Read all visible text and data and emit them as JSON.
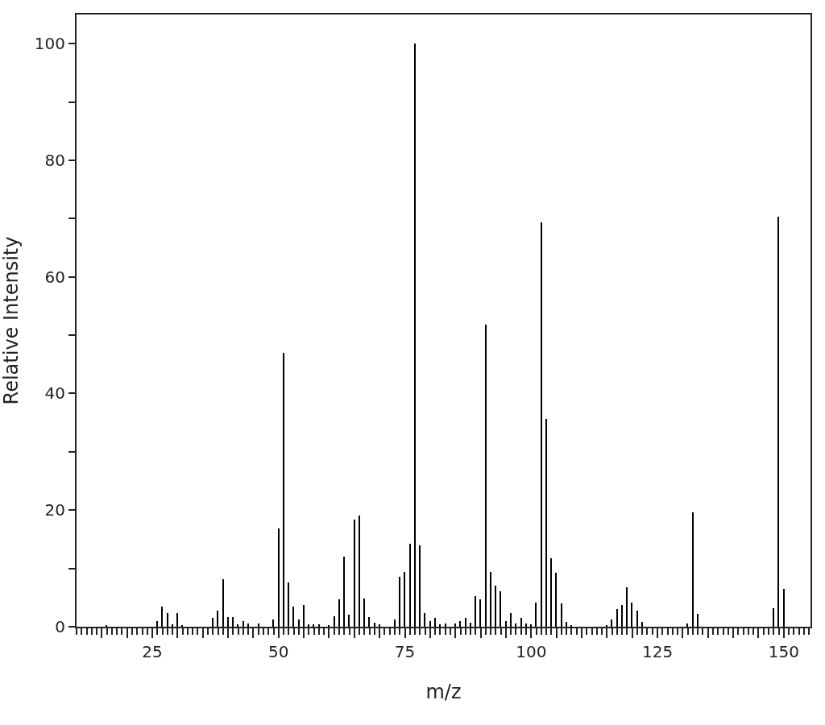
{
  "chart_data": {
    "type": "bar",
    "xlabel": "m/z",
    "ylabel": "Relative Intensity",
    "color": "#000000",
    "x": [
      16,
      26,
      27,
      28,
      29,
      30,
      31,
      37,
      38,
      39,
      40,
      41,
      42,
      43,
      44,
      46,
      49,
      50,
      51,
      52,
      53,
      54,
      55,
      56,
      57,
      58,
      60,
      61,
      62,
      63,
      64,
      65,
      66,
      67,
      68,
      69,
      70,
      73,
      74,
      75,
      76,
      77,
      78,
      79,
      80,
      81,
      82,
      83,
      85,
      86,
      87,
      88,
      89,
      90,
      91,
      92,
      93,
      94,
      95,
      96,
      97,
      98,
      99,
      100,
      101,
      102,
      103,
      104,
      105,
      106,
      107,
      108,
      115,
      116,
      117,
      118,
      119,
      120,
      121,
      122,
      131,
      132,
      133,
      148,
      149,
      150
    ],
    "values": [
      0.3,
      0.9,
      3.5,
      2.4,
      0.4,
      2.4,
      0.3,
      1.5,
      2.7,
      8.2,
      1.7,
      1.7,
      0.4,
      0.9,
      0.6,
      0.6,
      1.2,
      16.8,
      47,
      7.6,
      3.5,
      1.2,
      3.8,
      0.4,
      0.4,
      0.4,
      0.3,
      1.8,
      4.7,
      12,
      2.1,
      18.4,
      19,
      4.9,
      1.7,
      0.7,
      0.4,
      1.2,
      8.6,
      9.4,
      14.2,
      100,
      14,
      2.4,
      0.9,
      1.5,
      0.4,
      0.6,
      0.6,
      1,
      1.5,
      0.7,
      5.2,
      4.7,
      51.8,
      9.4,
      7.1,
      6.1,
      0.9,
      2.4,
      0.5,
      1.5,
      0.6,
      0.4,
      4.1,
      69.3,
      35.6,
      11.7,
      9.2,
      4,
      0.8,
      0.3,
      0.3,
      1.2,
      3,
      3.8,
      6.8,
      4.2,
      2.8,
      0.8,
      0.5,
      19.6,
      2.2,
      3.2,
      70.3,
      6.5
    ],
    "xlim": [
      10,
      155.3
    ],
    "ylim": [
      0,
      105
    ],
    "xticks": [
      25,
      50,
      75,
      100,
      125,
      150,
      {
        "value": 15,
        "label": null
      },
      {
        "value": 20,
        "label": null
      },
      {
        "value": 30,
        "label": null
      },
      {
        "value": 35,
        "label": null
      },
      {
        "value": 40,
        "label": null
      },
      {
        "value": 45,
        "label": null
      },
      {
        "value": 55,
        "label": null
      },
      {
        "value": 60,
        "label": null
      },
      {
        "value": 65,
        "label": null
      },
      {
        "value": 70,
        "label": null
      },
      {
        "value": 80,
        "label": null
      },
      {
        "value": 85,
        "label": null
      },
      {
        "value": 90,
        "label": null
      },
      {
        "value": 95,
        "label": null
      },
      {
        "value": 105,
        "label": null
      },
      {
        "value": 110,
        "label": null
      },
      {
        "value": 115,
        "label": null
      },
      {
        "value": 120,
        "label": null
      },
      {
        "value": 130,
        "label": null
      },
      {
        "value": 135,
        "label": null
      },
      {
        "value": 140,
        "label": null
      },
      {
        "value": 145,
        "label": null
      }
    ],
    "yticks": [
      0,
      20,
      40,
      60,
      80,
      100,
      {
        "value": 10,
        "label": null
      },
      {
        "value": 30,
        "label": null
      },
      {
        "value": 50,
        "label": null
      },
      {
        "value": 70,
        "label": null
      },
      {
        "value": 90,
        "label": null
      }
    ],
    "grid": false
  }
}
